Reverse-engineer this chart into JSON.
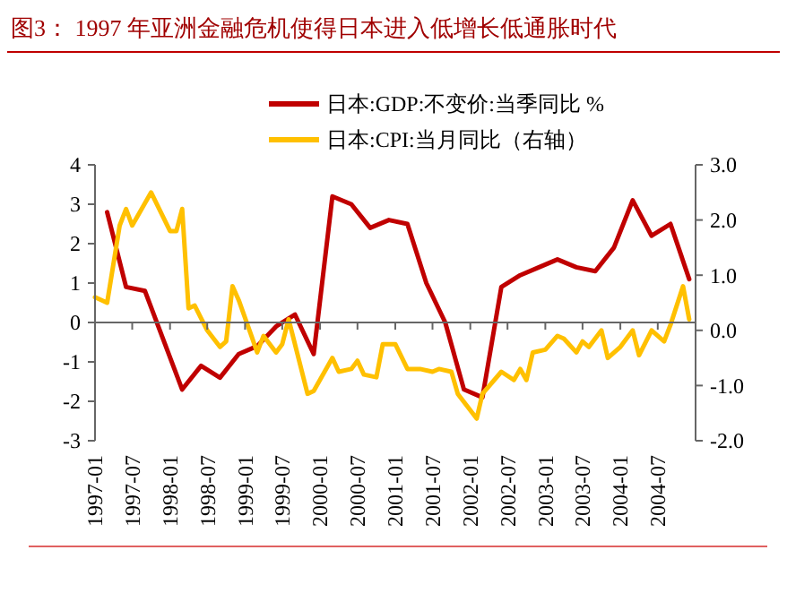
{
  "chart_data": {
    "type": "line",
    "title": "图3：  1997 年亚洲金融危机使得日本进入低增长低通胀时代",
    "legend": "top",
    "xlim": [
      "1997-01",
      "2005-01"
    ],
    "xticks": [
      "1997-01",
      "1997-07",
      "1998-01",
      "1998-07",
      "1999-01",
      "1999-07",
      "2000-01",
      "2000-07",
      "2001-01",
      "2001-07",
      "2002-01",
      "2002-07",
      "2003-01",
      "2003-07",
      "2004-01",
      "2004-07"
    ],
    "ylim": [
      -3,
      4
    ],
    "yticks": [
      -3,
      -2,
      -1,
      0,
      1,
      2,
      3,
      4
    ],
    "y2lim": [
      -2,
      3
    ],
    "y2ticks": [
      {
        "value": -2,
        "label": "-2.0"
      },
      {
        "value": -1,
        "label": "-1.0"
      },
      {
        "value": 0,
        "label": "0.0"
      },
      {
        "value": 1,
        "label": "1.0"
      },
      {
        "value": 2,
        "label": "2.0"
      },
      {
        "value": 3,
        "label": "3.0"
      }
    ],
    "series": [
      {
        "name": "日本:GDP:不变价:当季同比 %",
        "color": "#c00000",
        "x": [
          "1997-03",
          "1997-06",
          "1997-09",
          "1998-03",
          "1998-06",
          "1998-09",
          "1998-12",
          "1999-03",
          "1999-06",
          "1999-09",
          "1999-12",
          "2000-03",
          "2000-06",
          "2000-09",
          "2000-12",
          "2001-03",
          "2001-06",
          "2001-09",
          "2001-12",
          "2002-03",
          "2002-06",
          "2002-09",
          "2002-12",
          "2003-03",
          "2003-06",
          "2003-09",
          "2003-12",
          "2004-03",
          "2004-06",
          "2004-09",
          "2004-12"
        ],
        "values": [
          2.8,
          0.9,
          0.8,
          -1.7,
          -1.1,
          -1.4,
          -0.8,
          -0.6,
          -0.1,
          0.2,
          -0.8,
          3.2,
          3.0,
          2.4,
          2.6,
          2.5,
          1.0,
          0.0,
          -1.7,
          -1.9,
          0.9,
          1.2,
          1.4,
          1.6,
          1.4,
          1.3,
          1.9,
          3.1,
          2.2,
          2.5,
          1.1
        ]
      },
      {
        "name": "日本:CPI:当月同比（右轴）",
        "color": "#ffc000",
        "axis": "y2",
        "x": [
          "1997-01",
          "1997-03",
          "1997-05",
          "1997-06",
          "1997-07",
          "1997-10",
          "1998-01",
          "1998-02",
          "1998-03",
          "1998-04",
          "1998-05",
          "1998-07",
          "1998-09",
          "1998-10",
          "1998-11",
          "1998-12",
          "1999-02",
          "1999-03",
          "1999-04",
          "1999-06",
          "1999-07",
          "1999-08",
          "1999-11",
          "1999-12",
          "2000-03",
          "2000-04",
          "2000-06",
          "2000-07",
          "2000-08",
          "2000-10",
          "2000-11",
          "2001-01",
          "2001-03",
          "2001-05",
          "2001-07",
          "2001-08",
          "2001-10",
          "2001-11",
          "2002-02",
          "2002-03",
          "2002-06",
          "2002-08",
          "2002-09",
          "2002-10",
          "2002-11",
          "2003-01",
          "2003-03",
          "2003-04",
          "2003-06",
          "2003-07",
          "2003-08",
          "2003-10",
          "2003-11",
          "2004-01",
          "2004-03",
          "2004-04",
          "2004-06",
          "2004-08",
          "2004-09",
          "2004-11",
          "2004-12"
        ],
        "values": [
          0.6,
          0.5,
          1.9,
          2.2,
          1.9,
          2.5,
          1.8,
          1.8,
          2.2,
          0.4,
          0.45,
          0.0,
          -0.3,
          -0.2,
          0.8,
          0.55,
          -0.1,
          -0.4,
          -0.1,
          -0.4,
          -0.25,
          0.2,
          -1.15,
          -1.1,
          -0.5,
          -0.75,
          -0.7,
          -0.55,
          -0.8,
          -0.85,
          -0.25,
          -0.25,
          -0.7,
          -0.7,
          -0.75,
          -0.7,
          -0.75,
          -1.15,
          -1.6,
          -1.15,
          -0.75,
          -0.9,
          -0.7,
          -0.9,
          -0.4,
          -0.35,
          -0.1,
          -0.15,
          -0.4,
          -0.2,
          -0.3,
          0.0,
          -0.5,
          -0.3,
          0.0,
          -0.45,
          0.0,
          -0.2,
          0.1,
          0.8,
          0.2
        ]
      }
    ]
  }
}
